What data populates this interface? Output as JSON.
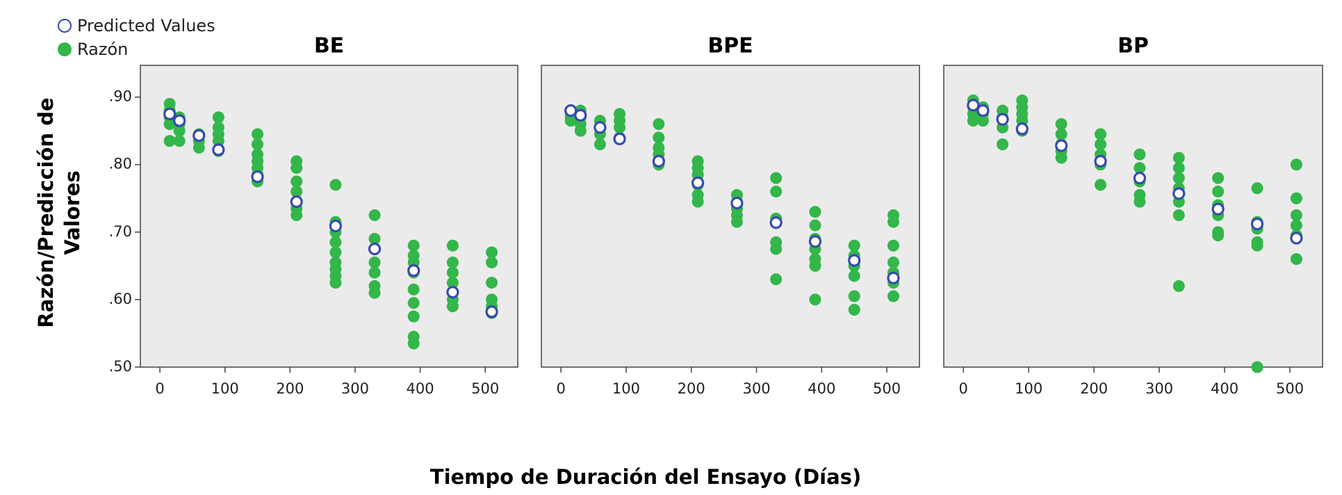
{
  "chart_data": {
    "type": "scatter",
    "x_label": "Tiempo de Duración del Ensayo (Días)",
    "y_label": [
      "Razón/Predicción de",
      "Valores"
    ],
    "xlim": [
      -30,
      550
    ],
    "xticks": [
      0,
      100,
      200,
      300,
      400,
      500
    ],
    "ylim": [
      0.5,
      0.947
    ],
    "yticks": [
      {
        "value": 0.5,
        "label": ".50"
      },
      {
        "value": 0.6,
        "label": ".60"
      },
      {
        "value": 0.7,
        "label": ".70"
      },
      {
        "value": 0.8,
        "label": ".80"
      },
      {
        "value": 0.9,
        "label": ".90"
      }
    ],
    "legend": "top-left",
    "series": [
      {
        "name": "Predicted Values",
        "color": "#3a48b0",
        "marker": "open"
      },
      {
        "name": "Razón",
        "color": "#33b64a",
        "marker": "filled"
      }
    ],
    "panels": [
      {
        "title": "BE",
        "series": [
          {
            "x": [
              15,
              30,
              60,
              90,
              150,
              210,
              270,
              330,
              390,
              450,
              510
            ],
            "values": [
              0.875,
              0.865,
              0.843,
              0.822,
              0.782,
              0.745,
              0.709,
              0.675,
              0.643,
              0.611,
              0.582
            ]
          },
          {
            "x": [
              15,
              15,
              15,
              15,
              15,
              30,
              30,
              30,
              30,
              60,
              60,
              60,
              90,
              90,
              90,
              90,
              90,
              150,
              150,
              150,
              150,
              150,
              150,
              150,
              210,
              210,
              210,
              210,
              210,
              210,
              210,
              270,
              270,
              270,
              270,
              270,
              270,
              270,
              270,
              270,
              330,
              330,
              330,
              330,
              330,
              330,
              330,
              390,
              390,
              390,
              390,
              390,
              390,
              390,
              390,
              390,
              450,
              450,
              450,
              450,
              450,
              450,
              450,
              510,
              510,
              510,
              510,
              510,
              510
            ],
            "values": [
              0.89,
              0.88,
              0.87,
              0.86,
              0.835,
              0.87,
              0.86,
              0.85,
              0.835,
              0.845,
              0.835,
              0.825,
              0.87,
              0.855,
              0.845,
              0.835,
              0.82,
              0.845,
              0.83,
              0.815,
              0.805,
              0.795,
              0.785,
              0.775,
              0.805,
              0.795,
              0.775,
              0.76,
              0.745,
              0.735,
              0.725,
              0.77,
              0.715,
              0.7,
              0.685,
              0.67,
              0.655,
              0.645,
              0.635,
              0.625,
              0.725,
              0.69,
              0.675,
              0.655,
              0.64,
              0.62,
              0.61,
              0.68,
              0.665,
              0.655,
              0.64,
              0.615,
              0.595,
              0.575,
              0.545,
              0.535,
              0.68,
              0.655,
              0.64,
              0.625,
              0.61,
              0.6,
              0.59,
              0.67,
              0.655,
              0.625,
              0.6,
              0.59,
              0.58
            ]
          }
        ]
      },
      {
        "title": "BPE",
        "series": [
          {
            "x": [
              15,
              30,
              60,
              90,
              150,
              210,
              270,
              330,
              390,
              450,
              510
            ],
            "values": [
              0.88,
              0.873,
              0.855,
              0.838,
              0.805,
              0.773,
              0.743,
              0.714,
              0.686,
              0.658,
              0.632
            ]
          },
          {
            "x": [
              15,
              15,
              15,
              15,
              30,
              30,
              30,
              30,
              60,
              60,
              60,
              60,
              90,
              90,
              90,
              90,
              150,
              150,
              150,
              150,
              150,
              210,
              210,
              210,
              210,
              210,
              210,
              270,
              270,
              270,
              270,
              270,
              330,
              330,
              330,
              330,
              330,
              330,
              390,
              390,
              390,
              390,
              390,
              390,
              390,
              450,
              450,
              450,
              450,
              450,
              450,
              510,
              510,
              510,
              510,
              510,
              510,
              510
            ],
            "values": [
              0.875,
              0.865,
              0.88,
              0.87,
              0.88,
              0.87,
              0.86,
              0.85,
              0.865,
              0.855,
              0.845,
              0.83,
              0.875,
              0.865,
              0.855,
              0.84,
              0.86,
              0.84,
              0.825,
              0.815,
              0.8,
              0.805,
              0.795,
              0.785,
              0.77,
              0.755,
              0.745,
              0.755,
              0.745,
              0.735,
              0.725,
              0.715,
              0.78,
              0.76,
              0.72,
              0.685,
              0.675,
              0.63,
              0.73,
              0.71,
              0.69,
              0.675,
              0.66,
              0.65,
              0.6,
              0.68,
              0.665,
              0.65,
              0.635,
              0.605,
              0.585,
              0.725,
              0.715,
              0.68,
              0.655,
              0.64,
              0.625,
              0.605
            ]
          }
        ]
      },
      {
        "title": "BP",
        "series": [
          {
            "x": [
              15,
              30,
              60,
              90,
              150,
              210,
              270,
              330,
              390,
              450,
              510
            ],
            "values": [
              0.888,
              0.88,
              0.867,
              0.853,
              0.828,
              0.805,
              0.78,
              0.757,
              0.734,
              0.712,
              0.691
            ]
          },
          {
            "x": [
              15,
              15,
              15,
              15,
              30,
              30,
              30,
              60,
              60,
              60,
              60,
              90,
              90,
              90,
              90,
              90,
              150,
              150,
              150,
              150,
              150,
              210,
              210,
              210,
              210,
              210,
              270,
              270,
              270,
              270,
              270,
              330,
              330,
              330,
              330,
              330,
              330,
              330,
              390,
              390,
              390,
              390,
              390,
              390,
              450,
              450,
              450,
              450,
              450,
              450,
              510,
              510,
              510,
              510,
              510,
              510
            ],
            "values": [
              0.895,
              0.885,
              0.875,
              0.865,
              0.885,
              0.875,
              0.865,
              0.88,
              0.87,
              0.855,
              0.83,
              0.895,
              0.885,
              0.875,
              0.865,
              0.85,
              0.86,
              0.845,
              0.83,
              0.82,
              0.81,
              0.845,
              0.83,
              0.815,
              0.8,
              0.77,
              0.815,
              0.795,
              0.775,
              0.755,
              0.745,
              0.81,
              0.795,
              0.78,
              0.765,
              0.745,
              0.725,
              0.62,
              0.78,
              0.76,
              0.74,
              0.725,
              0.7,
              0.695,
              0.765,
              0.715,
              0.705,
              0.685,
              0.68,
              0.5,
              0.8,
              0.75,
              0.725,
              0.71,
              0.695,
              0.66
            ]
          }
        ]
      }
    ]
  }
}
